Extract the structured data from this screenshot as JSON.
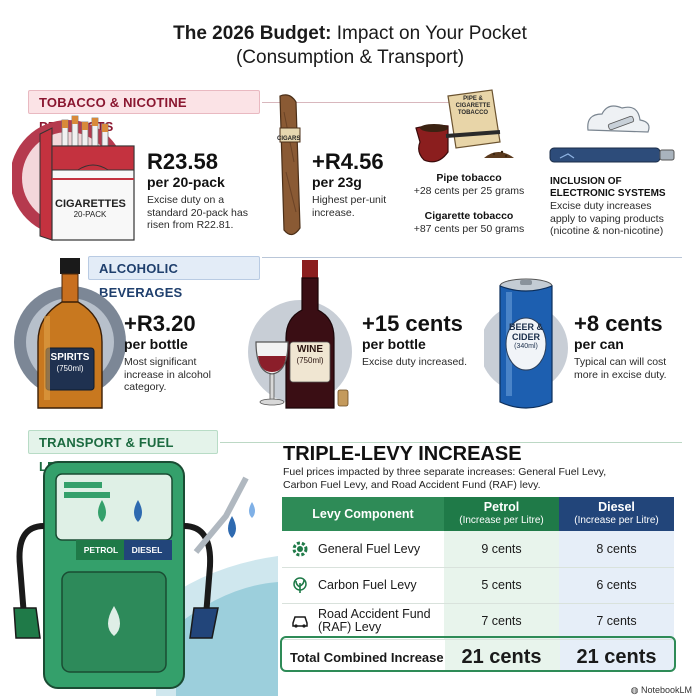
{
  "title": {
    "bold": "The 2026 Budget:",
    "rest": " Impact on Your Pocket",
    "line2": "(Consumption & Transport)"
  },
  "sections": {
    "tobacco": "TOBACCO & NICOTINE PRODUCTS",
    "alcohol": "ALCOHOLIC BEVERAGES",
    "transport": "TRANSPORT & FUEL LEVIES"
  },
  "tobacco": {
    "cigarettes": {
      "pack_line1": "CIGARETTES",
      "pack_line2": "20-PACK",
      "amount": "R23.58",
      "unit": "per 20-pack",
      "desc1": "Excise duty on a",
      "desc2": "standard 20-pack has",
      "desc3": "risen from R22.81."
    },
    "cigars": {
      "band": "CIGARS",
      "amount": "+R4.56",
      "unit": "per 23g",
      "desc1": "Highest per-unit",
      "desc2": "increase."
    },
    "pipe": {
      "pouch1": "PIPE &",
      "pouch2": "CIGARETTE",
      "pouch3": "TOBACCO",
      "heading": "Pipe tobacco",
      "detail": "+28 cents per 25 grams",
      "heading2": "Cigarette tobacco",
      "detail2": "+87 cents per 50 grams"
    },
    "electronic": {
      "heading1": "INCLUSION OF",
      "heading2": "ELECTRONIC SYSTEMS",
      "desc1": "Excise duty increases",
      "desc2": "apply to vaping products",
      "desc3": "(nicotine & non-nicotine)"
    }
  },
  "alcohol": {
    "spirits": {
      "label1": "SPIRITS",
      "label2": "(750ml)",
      "amount": "+R3.20",
      "unit": "per bottle",
      "desc1": "Most significant",
      "desc2": "increase in alcohol",
      "desc3": "category."
    },
    "wine": {
      "label1": "WINE",
      "label2": "(750ml)",
      "amount": "+15 cents",
      "unit": "per bottle",
      "desc1": "Excise duty increased."
    },
    "beer": {
      "label1": "BEER &",
      "label2": "CIDER",
      "label3": "(340ml)",
      "amount": "+8 cents",
      "unit": "per can",
      "desc1": "Typical can will cost",
      "desc2": "more in excise duty."
    }
  },
  "transport": {
    "pump_petrol": "PETROL",
    "pump_diesel": "DIESEL",
    "heading": "TRIPLE-LEVY INCREASE",
    "desc1": "Fuel prices impacted by three separate increases: General Fuel Levy,",
    "desc2": "Carbon Fuel Levy, and Road Accident Fund (RAF) levy.",
    "table": {
      "col_component": "Levy Component",
      "col_petrol": "Petrol",
      "col_petrol_sub": "(Increase per Litre)",
      "col_diesel": "Diesel",
      "col_diesel_sub": "(Increase per Litre)",
      "rows": [
        {
          "component": "General Fuel Levy",
          "petrol": "9 cents",
          "diesel": "8 cents"
        },
        {
          "component": "Carbon Fuel Levy",
          "petrol": "5 cents",
          "diesel": "6 cents"
        },
        {
          "component": "Road Accident Fund",
          "component2": "(RAF) Levy",
          "petrol": "7 cents",
          "diesel": "7 cents"
        }
      ],
      "total": {
        "component": "Total Combined Increase",
        "petrol": "21 cents",
        "diesel": "21 cents"
      }
    }
  },
  "watermark": "NotebookLM",
  "colors": {
    "tobacco_accent": "#8a1730",
    "alcohol_accent": "#1f3f6d",
    "transport_accent": "#2e8b57",
    "petrol_header": "#1f7a48",
    "diesel_header": "#22457a"
  }
}
